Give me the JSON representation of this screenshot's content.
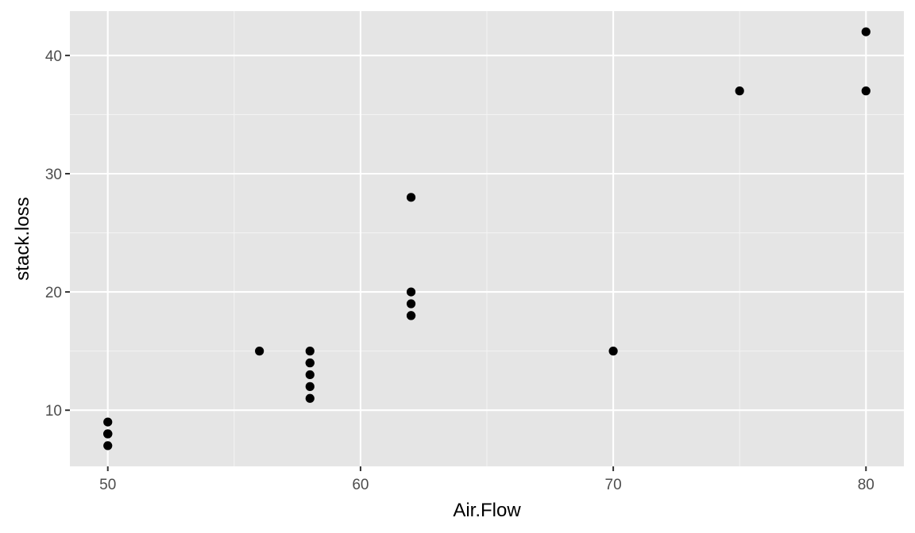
{
  "chart_data": {
    "type": "scatter",
    "title": "",
    "xlabel": "Air.Flow",
    "ylabel": "stack.loss",
    "xlim": [
      48.5,
      81.5
    ],
    "ylim": [
      5.25,
      43.75
    ],
    "x_ticks": [
      50,
      60,
      70,
      80
    ],
    "x_minor": [
      55,
      65,
      75
    ],
    "y_ticks": [
      10,
      20,
      30,
      40
    ],
    "y_minor": [
      15,
      25,
      35
    ],
    "grid": true,
    "legend": "none",
    "point_color": "#000000",
    "panel_color": "#e5e5e5",
    "points": [
      {
        "x": 80,
        "y": 42
      },
      {
        "x": 80,
        "y": 37
      },
      {
        "x": 75,
        "y": 37
      },
      {
        "x": 62,
        "y": 28
      },
      {
        "x": 62,
        "y": 18
      },
      {
        "x": 62,
        "y": 18
      },
      {
        "x": 62,
        "y": 19
      },
      {
        "x": 62,
        "y": 20
      },
      {
        "x": 58,
        "y": 15
      },
      {
        "x": 58,
        "y": 14
      },
      {
        "x": 58,
        "y": 14
      },
      {
        "x": 58,
        "y": 13
      },
      {
        "x": 58,
        "y": 11
      },
      {
        "x": 58,
        "y": 12
      },
      {
        "x": 50,
        "y": 8
      },
      {
        "x": 50,
        "y": 7
      },
      {
        "x": 50,
        "y": 8
      },
      {
        "x": 50,
        "y": 8
      },
      {
        "x": 50,
        "y": 9
      },
      {
        "x": 56,
        "y": 15
      },
      {
        "x": 70,
        "y": 15
      }
    ]
  }
}
